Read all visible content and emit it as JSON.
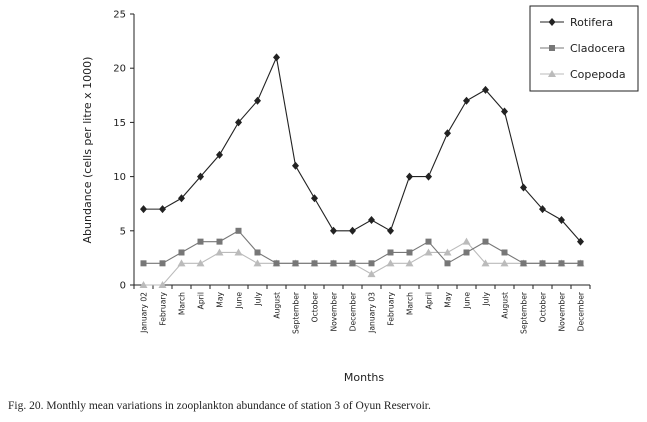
{
  "caption": "Fig. 20. Monthly mean variations in zooplankton abundance of station 3 of Oyun Reservoir.",
  "chart_data": {
    "type": "line",
    "xlabel": "Months",
    "ylabel": "Abundance (cells per litre x 1000)",
    "ylim": [
      0,
      25
    ],
    "yticks": [
      0,
      5,
      10,
      15,
      20,
      25
    ],
    "grid": false,
    "legend_position": "top-right",
    "categories": [
      "January 02",
      "February",
      "March",
      "April",
      "May",
      "June",
      "July",
      "August",
      "September",
      "October",
      "November",
      "December",
      "January 03",
      "February",
      "March",
      "April",
      "May",
      "June",
      "July",
      "August",
      "September",
      "October",
      "November",
      "December"
    ],
    "series": [
      {
        "name": "Rotifera",
        "color": "#222222",
        "marker": "diamond",
        "values": [
          7,
          7,
          8,
          10,
          12,
          15,
          17,
          21,
          11,
          8,
          5,
          5,
          6,
          5,
          10,
          10,
          14,
          17,
          18,
          16,
          9,
          7,
          6,
          4
        ]
      },
      {
        "name": "Cladocera",
        "color": "#777777",
        "marker": "square",
        "values": [
          2,
          2,
          3,
          4,
          4,
          5,
          3,
          2,
          2,
          2,
          2,
          2,
          2,
          3,
          3,
          4,
          2,
          3,
          4,
          3,
          2,
          2,
          2,
          2
        ]
      },
      {
        "name": "Copepoda",
        "color": "#bbbbbb",
        "marker": "triangle",
        "values": [
          0,
          0,
          2,
          2,
          3,
          3,
          2,
          2,
          2,
          2,
          2,
          2,
          1,
          2,
          2,
          3,
          3,
          4,
          2,
          2,
          2,
          2,
          2,
          2
        ]
      }
    ]
  }
}
